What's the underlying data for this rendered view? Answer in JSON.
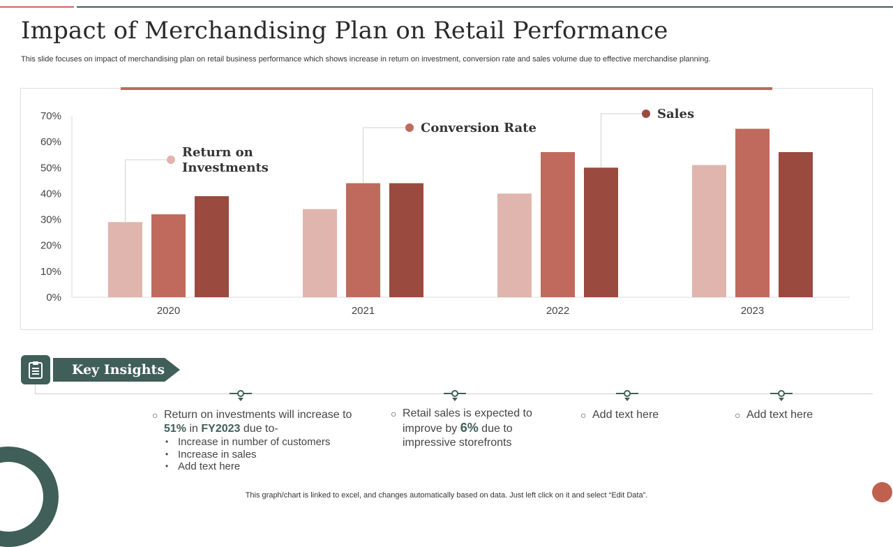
{
  "title": "Impact of Merchandising Plan on Retail Performance",
  "subtitle": "This slide focuses on impact of merchandising plan on retail business performance which shows increase in return on investment, conversion rate and sales volume due to effective  merchandise planning.",
  "chart_data": {
    "type": "bar",
    "categories": [
      "2020",
      "2021",
      "2022",
      "2023"
    ],
    "series": [
      {
        "name": "Return on Investments",
        "label_lines": [
          "Return on",
          "Investments"
        ],
        "color": "#e0b5ae",
        "values": [
          29,
          34,
          40,
          51
        ]
      },
      {
        "name": "Conversion Rate",
        "label_lines": [
          "Conversion Rate"
        ],
        "color": "#bf6a5c",
        "values": [
          32,
          44,
          56,
          65
        ]
      },
      {
        "name": "Sales",
        "label_lines": [
          "Sales"
        ],
        "color": "#9a4a3e",
        "values": [
          39,
          44,
          50,
          56
        ]
      }
    ],
    "ylim": [
      0,
      70
    ],
    "yticks": [
      "0%",
      "10%",
      "20%",
      "30%",
      "40%",
      "50%",
      "60%",
      "70%"
    ],
    "grid": false,
    "legend": "callouts"
  },
  "key_insights": {
    "label": "Key Insights",
    "icon": "clipboard-icon",
    "colors": {
      "primary": "#3f5f58",
      "accent": "#bf6a5c"
    },
    "insight1": {
      "pre": "Return  on investments  will increase to",
      "pct": "51%",
      "mid": "in",
      "fy": "FY2023",
      "post": "due to-",
      "bullets": [
        "Increase in number of customers",
        "Increase in sales",
        "Add text here"
      ]
    },
    "insight2": {
      "pre": "Retail sales is expected to improve by",
      "pct": "6%",
      "post": "due to impressive storefronts"
    },
    "insight3": "Add text here",
    "insight4": "Add text here"
  },
  "footer": "This graph/chart is linked to excel,  and changes automatically based on data. Just left click on it and select “Edit Data”."
}
